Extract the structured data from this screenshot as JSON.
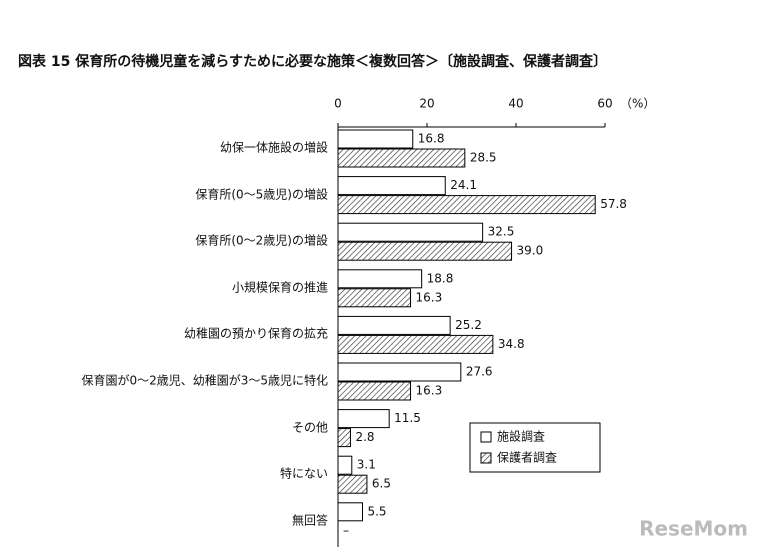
{
  "chart_data": {
    "type": "bar",
    "orientation": "horizontal",
    "title": "図表 15 保育所の待機児童を減らすために必要な施策＜複数回答＞〔施設調査、保護者調査〕",
    "unit_label": "（%）",
    "categories": [
      "幼保一体施設の増設",
      "保育所(0～5歳児)の増設",
      "保育所(0～2歳児)の増設",
      "小規模保育の推進",
      "幼稚園の預かり保育の拡充",
      "保育園が0～2歳児、幼稚園が3～5歳児に特化",
      "その他",
      "特にない",
      "無回答"
    ],
    "series": [
      {
        "name": "施設調査",
        "color": "#ffffff",
        "pattern": "none",
        "values": [
          16.8,
          24.1,
          32.5,
          18.8,
          25.2,
          27.6,
          11.5,
          3.1,
          5.5
        ],
        "value_labels": [
          "16.8",
          "24.1",
          "32.5",
          "18.8",
          "25.2",
          "27.6",
          "11.5",
          "3.1",
          "5.5"
        ]
      },
      {
        "name": "保護者調査",
        "color": "#ffffff",
        "pattern": "hatch",
        "values": [
          28.5,
          57.8,
          39.0,
          16.3,
          34.8,
          16.3,
          2.8,
          6.5,
          null
        ],
        "value_labels": [
          "28.5",
          "57.8",
          "39.0",
          "16.3",
          "34.8",
          "16.3",
          "2.8",
          "6.5",
          "–"
        ]
      }
    ],
    "xlim": [
      0,
      60
    ],
    "xticks": [
      0,
      20,
      40,
      60
    ],
    "legend": "lower-right",
    "watermark": "ReseMom"
  }
}
